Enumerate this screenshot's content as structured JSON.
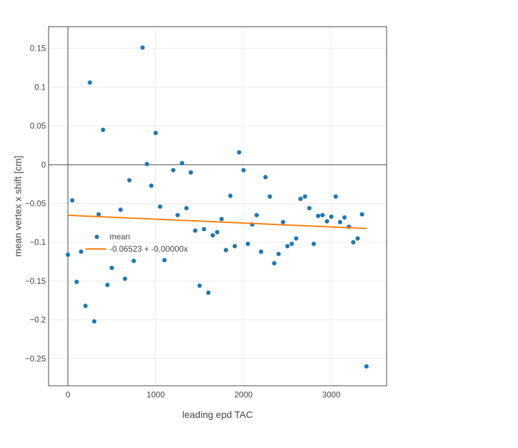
{
  "chart_data": {
    "type": "scatter",
    "xlabel": "leading epd TAC",
    "ylabel": "mean vertex x shift [cm]",
    "xlim": [
      -220,
      3630
    ],
    "ylim": [
      -0.285,
      0.178
    ],
    "xticks": [
      0,
      1000,
      2000,
      3000
    ],
    "yticks": [
      0.15,
      0.1,
      0.05,
      0,
      -0.05,
      -0.1,
      -0.15,
      -0.2,
      -0.25
    ],
    "xtick_labels": [
      "0",
      "1000",
      "2000",
      "3000"
    ],
    "ytick_labels": [
      "0.15",
      "0.1",
      "0.05",
      "0",
      "−0.05",
      "−0.1",
      "−0.15",
      "−0.2",
      "−0.25"
    ],
    "grid": true,
    "zero_lines": true,
    "legend_position": "left",
    "series": [
      {
        "type": "scatter",
        "color": "#1f77b4",
        "x": [
          0,
          50,
          100,
          150,
          200,
          250,
          300,
          330,
          350,
          400,
          450,
          500,
          600,
          650,
          700,
          750,
          850,
          900,
          950,
          1000,
          1050,
          1100,
          1200,
          1250,
          1300,
          1350,
          1400,
          1450,
          1500,
          1550,
          1600,
          1650,
          1700,
          1750,
          1800,
          1850,
          1900,
          1950,
          2000,
          2050,
          2100,
          2150,
          2200,
          2250,
          2300,
          2350,
          2400,
          2450,
          2500,
          2550,
          2600,
          2650,
          2700,
          2750,
          2800,
          2850,
          2900,
          2950,
          3000,
          3050,
          3100,
          3150,
          3200,
          3250,
          3300,
          3350,
          3400
        ],
        "y": [
          -0.116,
          -0.046,
          -0.151,
          -0.112,
          -0.182,
          0.106,
          -0.202,
          -0.093,
          -0.064,
          0.045,
          -0.155,
          -0.133,
          -0.058,
          -0.147,
          -0.02,
          -0.124,
          0.151,
          0.001,
          -0.027,
          0.041,
          -0.054,
          -0.123,
          -0.007,
          -0.065,
          0.002,
          -0.056,
          -0.01,
          -0.085,
          -0.156,
          -0.083,
          -0.165,
          -0.091,
          -0.087,
          -0.07,
          -0.11,
          -0.04,
          -0.105,
          0.016,
          -0.007,
          -0.102,
          -0.077,
          -0.065,
          -0.112,
          -0.016,
          -0.041,
          -0.127,
          -0.115,
          -0.074,
          -0.105,
          -0.102,
          -0.095,
          -0.044,
          -0.041,
          -0.056,
          -0.102,
          -0.066,
          -0.065,
          -0.073,
          -0.067,
          -0.041,
          -0.074,
          -0.068,
          -0.08,
          -0.1,
          -0.095,
          -0.064,
          -0.26
        ]
      },
      {
        "type": "line",
        "name": "mean",
        "color": "#ff7f0e",
        "x": [
          0,
          3400
        ],
        "y": [
          -0.0652,
          -0.0822
        ]
      }
    ],
    "legend": [
      {
        "label": "mean",
        "color": "#ff7f0e",
        "marker": "none"
      },
      {
        "label": "-0.06523 + -0.00000x",
        "color": "#ff7f0e",
        "marker": "line"
      }
    ]
  }
}
